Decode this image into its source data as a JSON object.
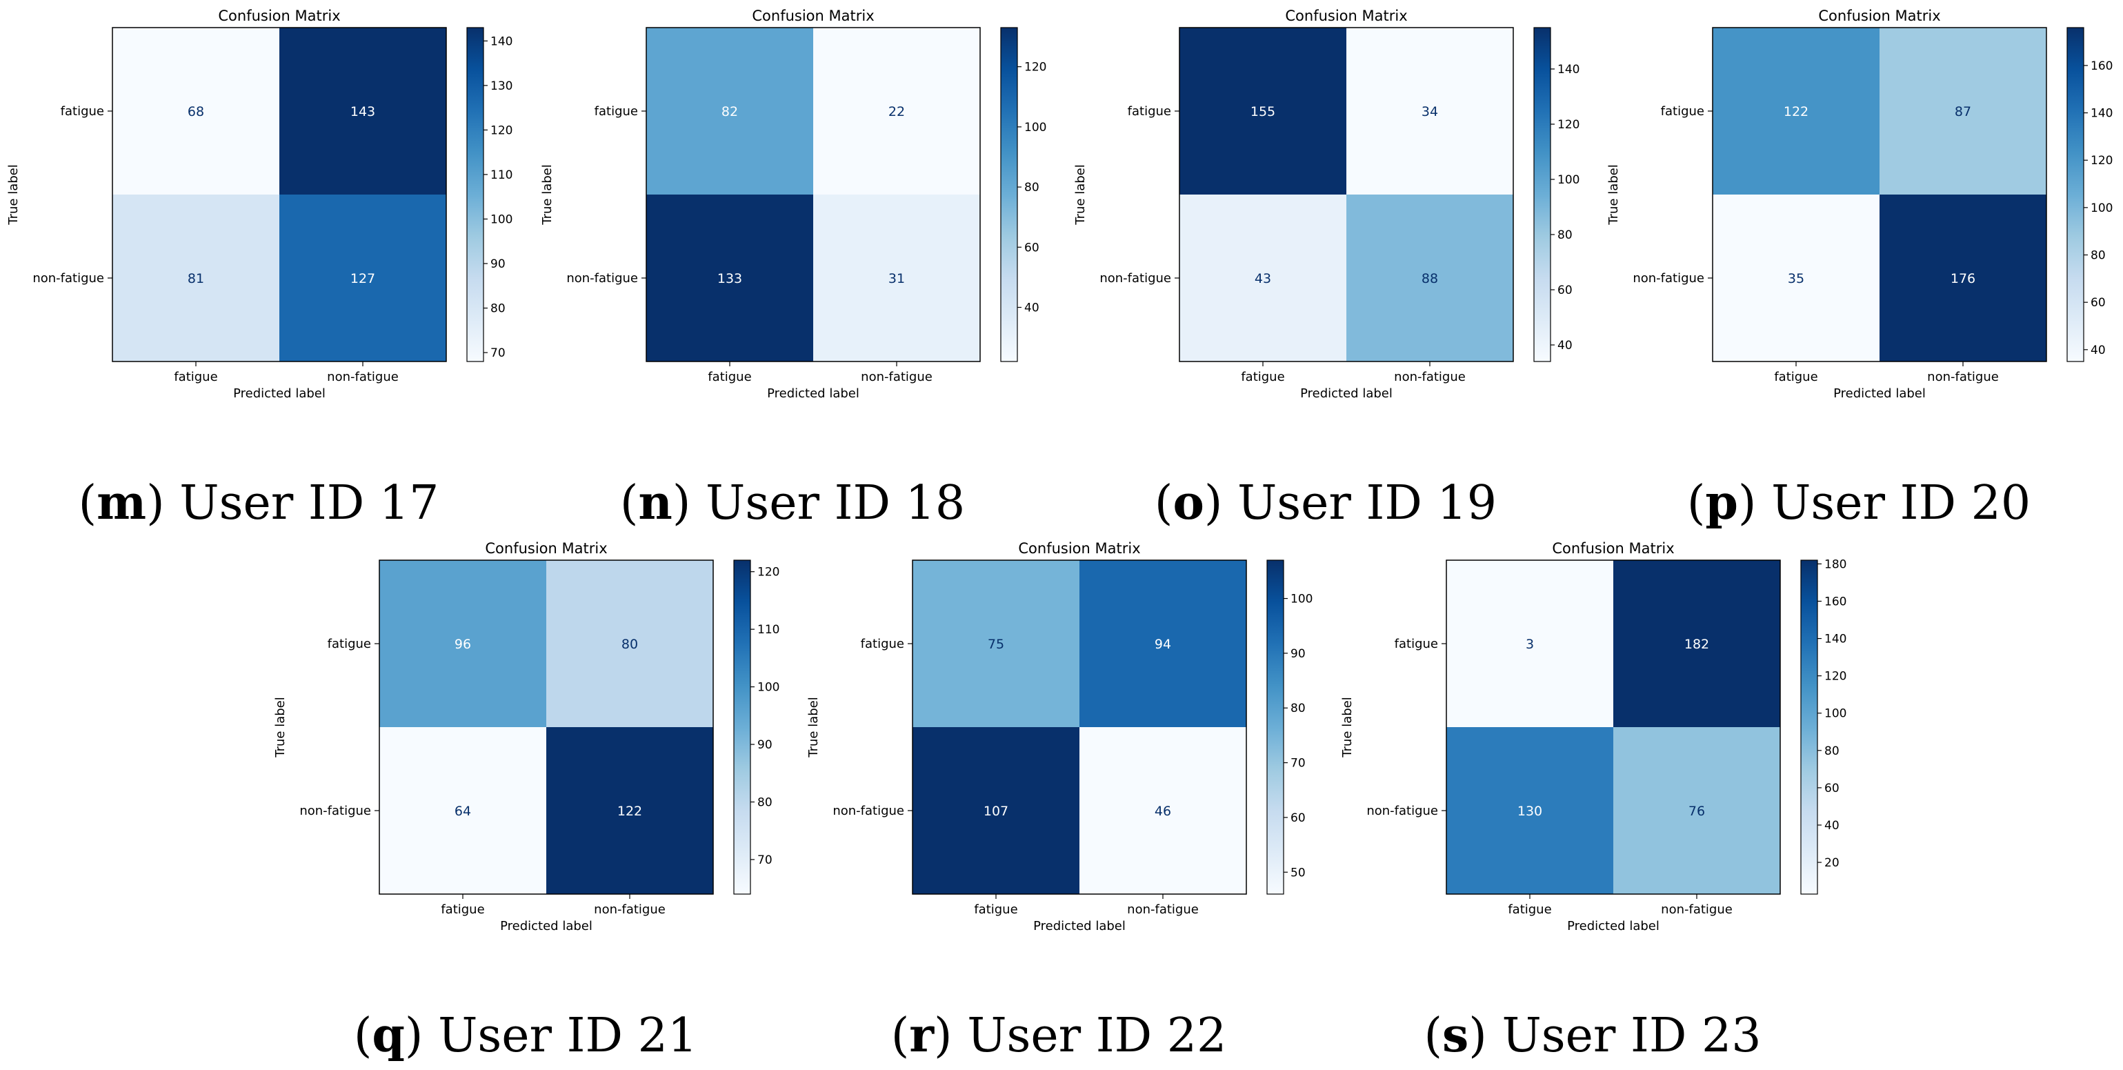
{
  "figure": {
    "common": {
      "title": "Confusion Matrix",
      "xlabel": "Predicted label",
      "ylabel": "True label",
      "class_labels": [
        "fatigue",
        "non-fatigue"
      ],
      "colormap": "Blues"
    }
  },
  "chart_data": [
    {
      "type": "heatmap",
      "caption_letter": "m",
      "caption_text": "User ID 17",
      "title": "Confusion Matrix",
      "xlabel": "Predicted label",
      "ylabel": "True label",
      "x_categories": [
        "fatigue",
        "non-fatigue"
      ],
      "y_categories": [
        "fatigue",
        "non-fatigue"
      ],
      "matrix": [
        [
          68,
          143
        ],
        [
          81,
          127
        ]
      ],
      "colorbar_ticks": [
        70,
        80,
        90,
        100,
        110,
        120,
        130,
        140
      ]
    },
    {
      "type": "heatmap",
      "caption_letter": "n",
      "caption_text": "User ID 18",
      "title": "Confusion Matrix",
      "xlabel": "Predicted label",
      "ylabel": "True label",
      "x_categories": [
        "fatigue",
        "non-fatigue"
      ],
      "y_categories": [
        "fatigue",
        "non-fatigue"
      ],
      "matrix": [
        [
          82,
          22
        ],
        [
          133,
          31
        ]
      ],
      "colorbar_ticks": [
        40,
        60,
        80,
        100,
        120
      ]
    },
    {
      "type": "heatmap",
      "caption_letter": "o",
      "caption_text": "User ID 19",
      "title": "Confusion Matrix",
      "xlabel": "Predicted label",
      "ylabel": "True label",
      "x_categories": [
        "fatigue",
        "non-fatigue"
      ],
      "y_categories": [
        "fatigue",
        "non-fatigue"
      ],
      "matrix": [
        [
          155,
          34
        ],
        [
          43,
          88
        ]
      ],
      "colorbar_ticks": [
        40,
        60,
        80,
        100,
        120,
        140
      ]
    },
    {
      "type": "heatmap",
      "caption_letter": "p",
      "caption_text": "User ID 20",
      "title": "Confusion Matrix",
      "xlabel": "Predicted label",
      "ylabel": "True label",
      "x_categories": [
        "fatigue",
        "non-fatigue"
      ],
      "y_categories": [
        "fatigue",
        "non-fatigue"
      ],
      "matrix": [
        [
          122,
          87
        ],
        [
          35,
          176
        ]
      ],
      "colorbar_ticks": [
        40,
        60,
        80,
        100,
        120,
        140,
        160
      ]
    },
    {
      "type": "heatmap",
      "caption_letter": "q",
      "caption_text": "User ID 21",
      "title": "Confusion Matrix",
      "xlabel": "Predicted label",
      "ylabel": "True label",
      "x_categories": [
        "fatigue",
        "non-fatigue"
      ],
      "y_categories": [
        "fatigue",
        "non-fatigue"
      ],
      "matrix": [
        [
          96,
          80
        ],
        [
          64,
          122
        ]
      ],
      "colorbar_ticks": [
        70,
        80,
        90,
        100,
        110,
        120
      ]
    },
    {
      "type": "heatmap",
      "caption_letter": "r",
      "caption_text": "User ID 22",
      "title": "Confusion Matrix",
      "xlabel": "Predicted label",
      "ylabel": "True label",
      "x_categories": [
        "fatigue",
        "non-fatigue"
      ],
      "y_categories": [
        "fatigue",
        "non-fatigue"
      ],
      "matrix": [
        [
          75,
          94
        ],
        [
          107,
          46
        ]
      ],
      "colorbar_ticks": [
        50,
        60,
        70,
        80,
        90,
        100
      ]
    },
    {
      "type": "heatmap",
      "caption_letter": "s",
      "caption_text": "User ID 23",
      "title": "Confusion Matrix",
      "xlabel": "Predicted label",
      "ylabel": "True label",
      "x_categories": [
        "fatigue",
        "non-fatigue"
      ],
      "y_categories": [
        "fatigue",
        "non-fatigue"
      ],
      "matrix": [
        [
          3,
          182
        ],
        [
          130,
          76
        ]
      ],
      "colorbar_ticks": [
        20,
        40,
        60,
        80,
        100,
        120,
        140,
        160,
        180
      ]
    }
  ]
}
